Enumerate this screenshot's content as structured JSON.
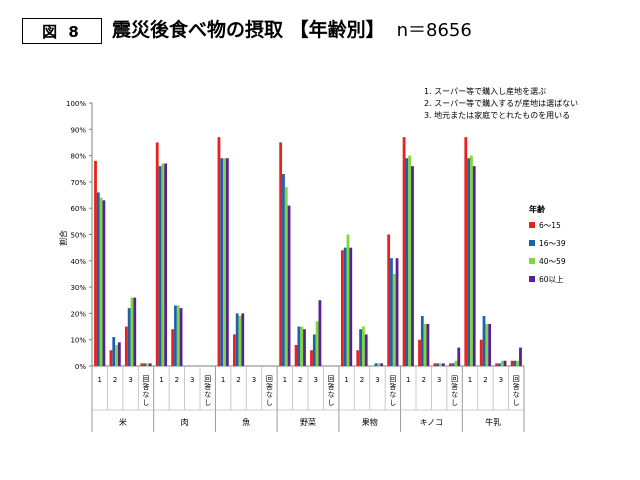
{
  "figure_label": "図 8",
  "title": "震災後食べ物の摂取 【年齢別】",
  "n_label": "n＝8656",
  "notes": [
    "1. スーパー等で購入し産地を選ぶ",
    "2. スーパー等で購入するが産地は選ばない",
    "3. 地元または家庭でとれたものを用いる"
  ],
  "colors": {
    "6〜15": "#e8221a",
    "16〜39": "#1f5fb0",
    "40〜59": "#7ed83a",
    "60以上": "#5b1f95"
  },
  "chart_data": {
    "type": "bar",
    "title": "震災後食べ物の摂取 【年齢別】",
    "xlabel": "",
    "ylabel": "割合",
    "ylim": [
      0,
      100
    ],
    "y_ticks": [
      "0%",
      "10%",
      "20%",
      "30%",
      "40%",
      "50%",
      "60%",
      "70%",
      "80%",
      "90%",
      "100%"
    ],
    "legend_title": "年齢",
    "legend_position": "right",
    "food_groups": [
      "米",
      "肉",
      "魚",
      "野菜",
      "果物",
      "キノコ",
      "牛乳"
    ],
    "answers": [
      "1",
      "2",
      "3",
      "回答なし"
    ],
    "series": [
      {
        "name": "6〜15",
        "color": "#e8221a",
        "values": [
          [
            78,
            6,
            15,
            1
          ],
          [
            85,
            14,
            0,
            0
          ],
          [
            87,
            12,
            0,
            0
          ],
          [
            85,
            8,
            6,
            0
          ],
          [
            44,
            6,
            0,
            50
          ],
          [
            87,
            10,
            1,
            1
          ],
          [
            87,
            10,
            1,
            2
          ]
        ]
      },
      {
        "name": "16〜39",
        "color": "#1f5fb0",
        "values": [
          [
            66,
            11,
            22,
            1
          ],
          [
            76,
            23,
            0,
            0
          ],
          [
            79,
            20,
            0,
            0
          ],
          [
            73,
            15,
            12,
            0
          ],
          [
            45,
            14,
            1,
            41
          ],
          [
            79,
            19,
            1,
            1
          ],
          [
            79,
            19,
            1,
            2
          ]
        ]
      },
      {
        "name": "40〜59",
        "color": "#7ed83a",
        "values": [
          [
            64,
            8,
            26,
            1
          ],
          [
            77,
            23,
            0,
            0
          ],
          [
            79,
            19,
            0,
            0
          ],
          [
            68,
            15,
            17,
            0
          ],
          [
            50,
            15,
            1,
            35
          ],
          [
            80,
            16,
            1,
            2
          ],
          [
            80,
            16,
            2,
            2
          ]
        ]
      },
      {
        "name": "60以上",
        "color": "#5b1f95",
        "values": [
          [
            63,
            9,
            26,
            1
          ],
          [
            77,
            22,
            0,
            0
          ],
          [
            79,
            20,
            0,
            0
          ],
          [
            61,
            14,
            25,
            0
          ],
          [
            45,
            12,
            1,
            41
          ],
          [
            76,
            16,
            1,
            7
          ],
          [
            76,
            16,
            2,
            7
          ]
        ]
      }
    ]
  }
}
